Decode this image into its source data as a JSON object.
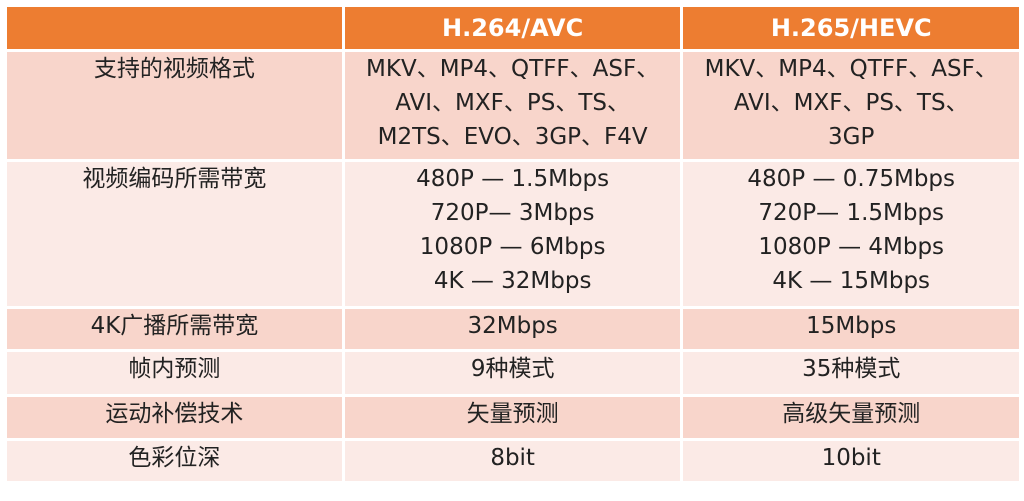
{
  "header": [
    "",
    "H.264/AVC",
    "H.265/HEVC"
  ],
  "colors": {
    "header": "#ED7D31",
    "row_odd": "#F8D5CB",
    "row_even": "#FBEAE6"
  },
  "rows": [
    {
      "label": "支持的视频格式",
      "avc": [
        "MKV、MP4、QTFF、ASF、",
        "AVI、MXF、PS、TS、",
        "M2TS、EVO、3GP、F4V"
      ],
      "hevc": [
        "MKV、MP4、QTFF、ASF、",
        "AVI、MXF、PS、TS、",
        "3GP"
      ]
    },
    {
      "label": "视频编码所需带宽",
      "avc": [
        "480P — 1.5Mbps",
        "720P— 3Mbps",
        "1080P — 6Mbps",
        "4K — 32Mbps"
      ],
      "hevc": [
        "480P — 0.75Mbps",
        "720P— 1.5Mbps",
        "1080P — 4Mbps",
        "4K — 15Mbps"
      ]
    },
    {
      "label": "4K广播所需带宽",
      "avc": [
        "32Mbps"
      ],
      "hevc": [
        "15Mbps"
      ]
    },
    {
      "label": "帧内预测",
      "avc": [
        "9种模式"
      ],
      "hevc": [
        "35种模式"
      ]
    },
    {
      "label": "运动补偿技术",
      "avc": [
        "矢量预测"
      ],
      "hevc": [
        "高级矢量预测"
      ]
    },
    {
      "label": "色彩位深",
      "avc": [
        "8bit"
      ],
      "hevc": [
        "10bit"
      ]
    }
  ]
}
